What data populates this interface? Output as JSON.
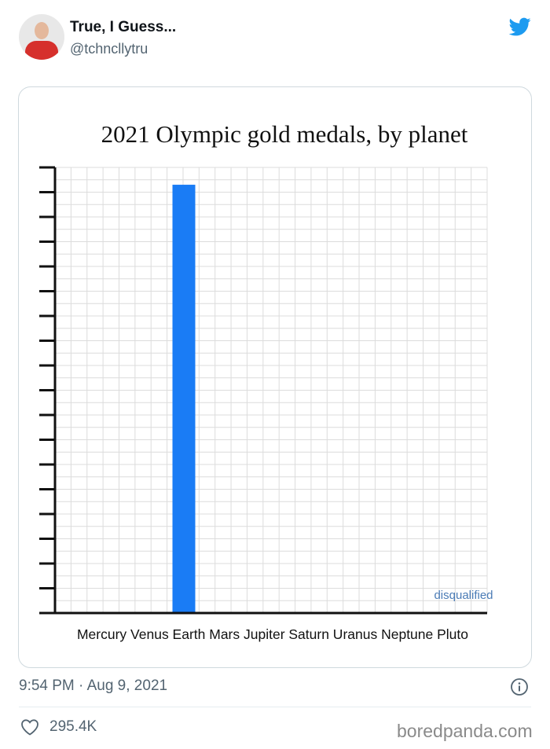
{
  "tweet": {
    "author_name": "True, I Guess...",
    "author_handle": "@tchncllytru",
    "timestamp": "9:54 PM · Aug 9, 2021",
    "likes": "295.4K"
  },
  "watermark": "boredpanda.com",
  "colors": {
    "twitter_blue": "#1d9bf0",
    "bar_blue": "#1a7cf5",
    "annotation_blue": "#4a7bb5",
    "muted_text": "#536471"
  },
  "icons": [
    "twitter-bird-icon",
    "info-icon",
    "heart-icon"
  ],
  "chart_data": {
    "type": "bar",
    "title": "2021 Olympic gold medals, by planet",
    "categories": [
      "Mercury",
      "Venus",
      "Earth",
      "Mars",
      "Jupiter",
      "Saturn",
      "Uranus",
      "Neptune",
      "Pluto"
    ],
    "values": [
      0,
      0,
      17.3,
      0,
      0,
      0,
      0,
      0,
      0
    ],
    "ylim": [
      0,
      18
    ],
    "y_ticks": 18,
    "y_tick_labels": false,
    "grid": true,
    "annotation": "disqualified",
    "x_labels_line": "Mercury Venus Earth Mars Jupiter Saturn Uranus Neptune Pluto"
  }
}
